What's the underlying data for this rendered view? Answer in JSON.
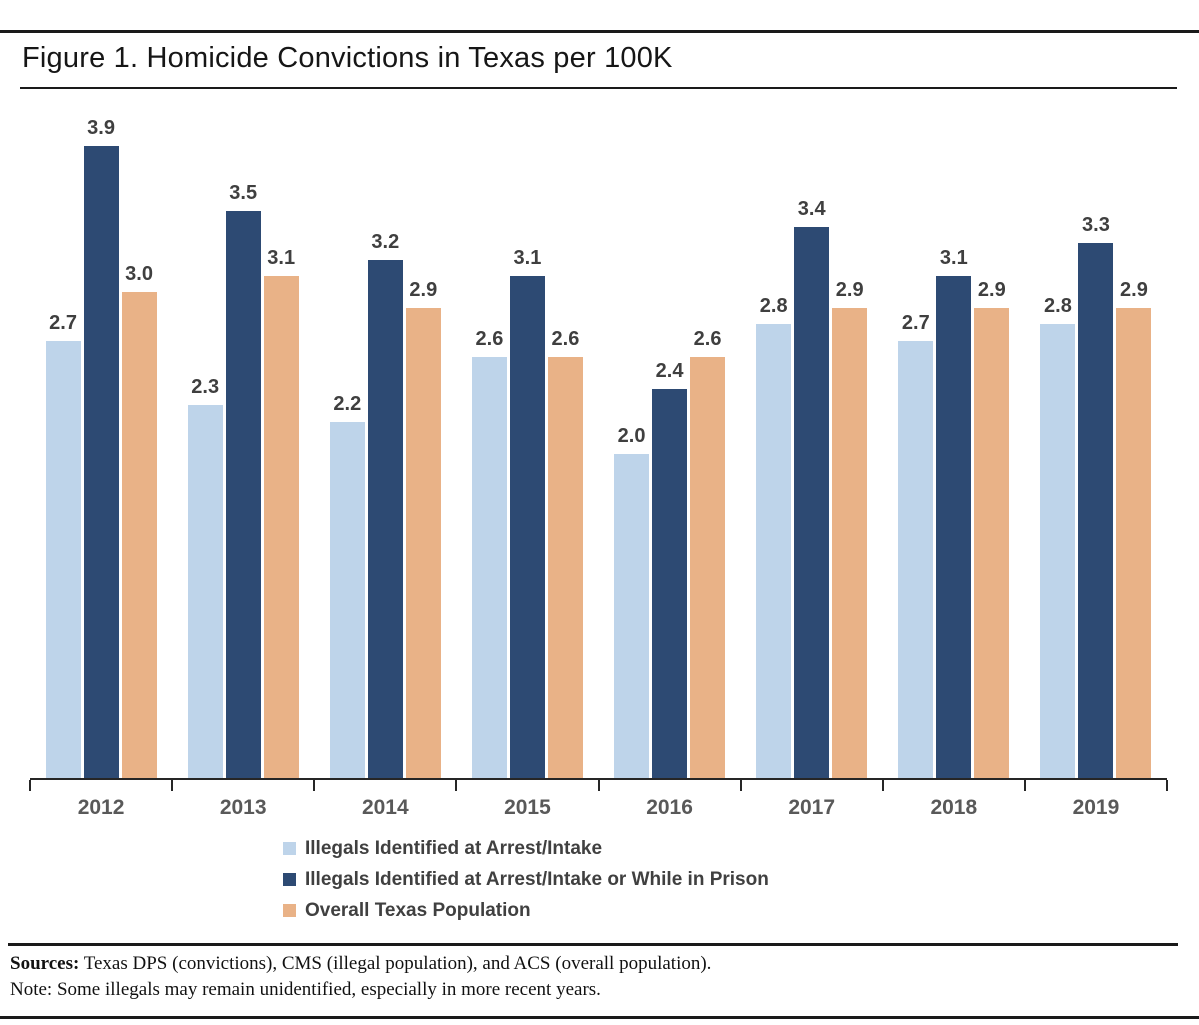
{
  "title": "Figure 1. Homicide Convictions in Texas per 100K",
  "chart_data": {
    "type": "bar",
    "title": "Figure 1. Homicide Convictions in Texas per 100K",
    "categories": [
      "2012",
      "2013",
      "2014",
      "2015",
      "2016",
      "2017",
      "2018",
      "2019"
    ],
    "series": [
      {
        "name": "Illegals Identified at Arrest/Intake",
        "color": "#bed4ea",
        "values": [
          2.7,
          2.3,
          2.2,
          2.6,
          2.0,
          2.8,
          2.7,
          2.8
        ]
      },
      {
        "name": "Illegals Identified at Arrest/Intake or While in Prison",
        "color": "#2d4a73",
        "values": [
          3.9,
          3.5,
          3.2,
          3.1,
          2.4,
          3.4,
          3.1,
          3.3
        ]
      },
      {
        "name": "Overall Texas Population",
        "color": "#e9b287",
        "values": [
          3.0,
          3.1,
          2.9,
          2.6,
          2.6,
          2.9,
          2.9,
          2.9
        ]
      }
    ],
    "xlabel": "",
    "ylabel": "",
    "ylim": [
      0,
      4.2
    ],
    "grid": false,
    "data_labels": true,
    "legend_position": "bottom"
  },
  "footer": {
    "sources_label": "Sources:",
    "sources_text": " Texas DPS (convictions), CMS (illegal population), and ACS (overall population).",
    "note_text": "Note: Some illegals may remain unidentified, especially in more recent years."
  },
  "colors": {
    "axis": "#262626",
    "value_label": "#3f3f3f",
    "year_label": "#595959",
    "legend_label": "#404040",
    "rule": "#1a1a1a"
  }
}
